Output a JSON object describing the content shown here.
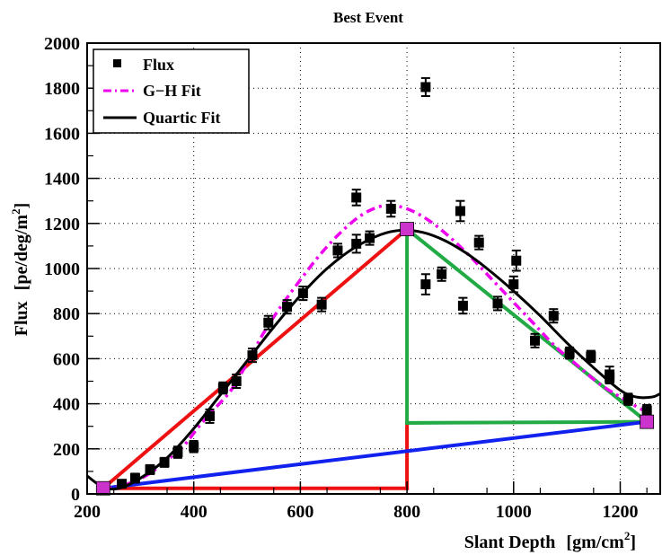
{
  "chart_data": {
    "type": "scatter",
    "title": "Best Event",
    "xlabel": "Slant Depth",
    "xlabel_unit": "[gm/cm",
    "xlabel_unit_sup": "2",
    "xlabel_unit_end": "]",
    "ylabel": "Flux",
    "ylabel_unit": "[pe/deg/m",
    "ylabel_unit_sup": "2",
    "ylabel_unit_end": "]",
    "xlim": [
      200,
      1275
    ],
    "ylim": [
      0,
      2000
    ],
    "xticks": [
      200,
      400,
      600,
      800,
      1000,
      1200
    ],
    "yticks": [
      0,
      200,
      400,
      600,
      800,
      1000,
      1200,
      1400,
      1600,
      1800,
      2000
    ],
    "grid": true,
    "legend": {
      "position": "top-left",
      "entries": [
        {
          "label": "Flux",
          "style": "marker",
          "color": "#000000"
        },
        {
          "label": "G−H Fit",
          "style": "dash-dot",
          "color": "#ee00ee"
        },
        {
          "label": "Quartic Fit",
          "style": "solid",
          "color": "#000000"
        }
      ]
    },
    "flux_points": [
      {
        "x": 230,
        "y": 20,
        "err": 15
      },
      {
        "x": 265,
        "y": 45,
        "err": 15
      },
      {
        "x": 290,
        "y": 70,
        "err": 20
      },
      {
        "x": 318,
        "y": 108,
        "err": 20
      },
      {
        "x": 345,
        "y": 140,
        "err": 20
      },
      {
        "x": 370,
        "y": 185,
        "err": 25
      },
      {
        "x": 400,
        "y": 210,
        "err": 25
      },
      {
        "x": 430,
        "y": 345,
        "err": 30
      },
      {
        "x": 455,
        "y": 470,
        "err": 25
      },
      {
        "x": 480,
        "y": 500,
        "err": 30
      },
      {
        "x": 510,
        "y": 615,
        "err": 30
      },
      {
        "x": 540,
        "y": 760,
        "err": 30
      },
      {
        "x": 575,
        "y": 830,
        "err": 30
      },
      {
        "x": 605,
        "y": 890,
        "err": 30
      },
      {
        "x": 640,
        "y": 840,
        "err": 30
      },
      {
        "x": 670,
        "y": 1080,
        "err": 30
      },
      {
        "x": 705,
        "y": 1110,
        "err": 40
      },
      {
        "x": 705,
        "y": 1315,
        "err": 35
      },
      {
        "x": 730,
        "y": 1135,
        "err": 30
      },
      {
        "x": 770,
        "y": 1265,
        "err": 35
      },
      {
        "x": 835,
        "y": 1805,
        "err": 40
      },
      {
        "x": 835,
        "y": 930,
        "err": 45
      },
      {
        "x": 865,
        "y": 975,
        "err": 30
      },
      {
        "x": 900,
        "y": 1255,
        "err": 45
      },
      {
        "x": 905,
        "y": 835,
        "err": 35
      },
      {
        "x": 935,
        "y": 1115,
        "err": 30
      },
      {
        "x": 970,
        "y": 845,
        "err": 30
      },
      {
        "x": 1000,
        "y": 930,
        "err": 35
      },
      {
        "x": 1005,
        "y": 1035,
        "err": 45
      },
      {
        "x": 1040,
        "y": 680,
        "err": 30
      },
      {
        "x": 1075,
        "y": 790,
        "err": 30
      },
      {
        "x": 1105,
        "y": 625,
        "err": 25
      },
      {
        "x": 1145,
        "y": 610,
        "err": 25
      },
      {
        "x": 1180,
        "y": 530,
        "err": 35
      },
      {
        "x": 1180,
        "y": 515,
        "err": 25
      },
      {
        "x": 1215,
        "y": 420,
        "err": 25
      },
      {
        "x": 1250,
        "y": 370,
        "err": 25
      }
    ],
    "gh_fit": {
      "name": "G−H Fit",
      "color": "#ee00ee",
      "x": [
        230,
        270,
        310,
        350,
        380,
        410,
        440,
        470,
        500,
        530,
        560,
        600,
        640,
        680,
        720,
        760,
        800,
        840,
        880,
        920,
        960,
        1000,
        1040,
        1080,
        1120,
        1160,
        1200,
        1240,
        1255
      ],
      "y": [
        20,
        40,
        80,
        150,
        210,
        300,
        380,
        460,
        580,
        710,
        820,
        950,
        1070,
        1170,
        1245,
        1280,
        1265,
        1215,
        1140,
        1050,
        950,
        850,
        750,
        650,
        570,
        490,
        430,
        375,
        360
      ]
    },
    "quartic_fit": {
      "name": "Quartic Fit",
      "color": "#000000",
      "x": [
        200,
        230,
        260,
        300,
        350,
        400,
        450,
        500,
        550,
        600,
        650,
        700,
        750,
        790,
        830,
        870,
        910,
        950,
        1000,
        1050,
        1100,
        1150,
        1200,
        1230,
        1260,
        1275
      ],
      "y": [
        80,
        30,
        25,
        70,
        160,
        290,
        440,
        590,
        740,
        880,
        1000,
        1090,
        1150,
        1170,
        1160,
        1125,
        1070,
        1000,
        900,
        790,
        670,
        560,
        460,
        430,
        430,
        445
      ]
    },
    "annotations": {
      "red_lines": {
        "color": "#ee1111",
        "segments": [
          [
            [
              230,
              25
            ],
            [
              800,
              1175
            ]
          ],
          [
            [
              230,
              25
            ],
            [
              800,
              25
            ]
          ],
          [
            [
              800,
              25
            ],
            [
              800,
              315
            ]
          ]
        ]
      },
      "green_lines": {
        "color": "#22aa44",
        "segments": [
          [
            [
              800,
              1175
            ],
            [
              800,
              315
            ]
          ],
          [
            [
              800,
              1175
            ],
            [
              1250,
              320
            ]
          ],
          [
            [
              800,
              315
            ],
            [
              1250,
              320
            ]
          ]
        ]
      },
      "blue_line": {
        "color": "#1122ee",
        "segments": [
          [
            [
              230,
              25
            ],
            [
              1250,
              320
            ]
          ]
        ]
      },
      "markers": [
        {
          "x": 230,
          "y": 25,
          "color": "#cc33cc"
        },
        {
          "x": 800,
          "y": 1175,
          "color": "#cc33cc"
        },
        {
          "x": 1250,
          "y": 320,
          "color": "#cc33cc"
        }
      ]
    }
  }
}
